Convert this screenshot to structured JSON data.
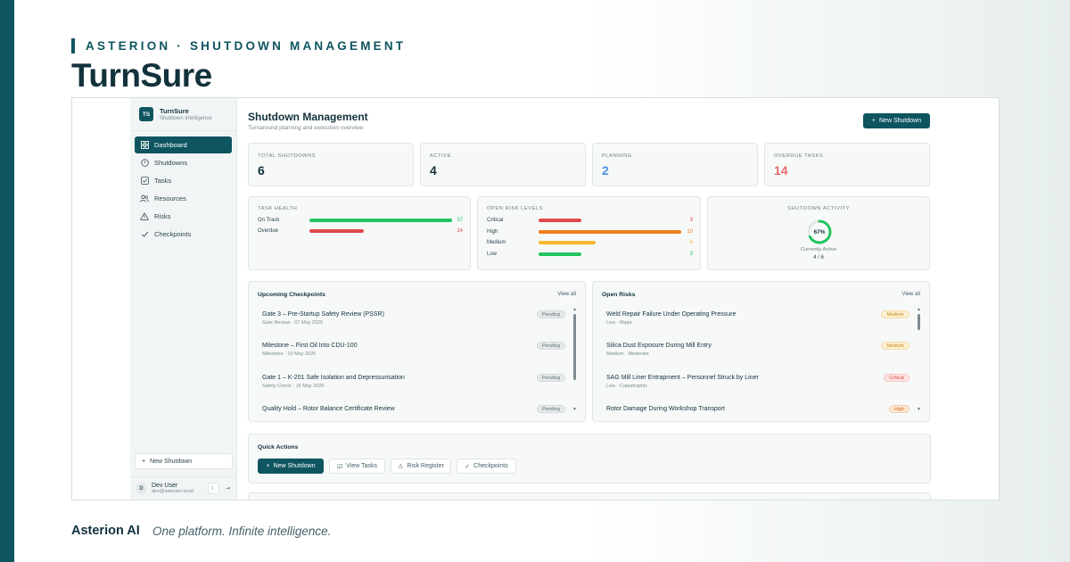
{
  "eyebrow": "ASTERION · SHUTDOWN MANAGEMENT",
  "product_title": "TurnSure",
  "colors": {
    "brand": "#0e5560",
    "green": "#22c55e",
    "red": "#e0484a",
    "orange": "#ee7d1c",
    "yellow": "#f5b82e",
    "blue": "#4f8fe0",
    "overdue": "#e86a6a"
  },
  "sidebar": {
    "logo": "TS",
    "brand_name": "TurnSure",
    "brand_sub": "Shutdown Intelligence",
    "items": [
      {
        "label": "Dashboard",
        "icon": "grid-icon"
      },
      {
        "label": "Shutdowns",
        "icon": "power-icon"
      },
      {
        "label": "Tasks",
        "icon": "checkbox-icon"
      },
      {
        "label": "Resources",
        "icon": "users-icon"
      },
      {
        "label": "Risks",
        "icon": "warning-icon"
      },
      {
        "label": "Checkpoints",
        "icon": "check-icon"
      }
    ],
    "new_shutdown": "New Shutdown",
    "user": {
      "initial": "D",
      "name": "Dev User",
      "email": "dev@asterion.local"
    }
  },
  "main": {
    "title": "Shutdown Management",
    "subtitle": "Turnaround planning and execution overview",
    "new_button": "New Shutdown"
  },
  "stats": [
    {
      "label": "TOTAL SHUTDOWNS",
      "value": "6"
    },
    {
      "label": "ACTIVE",
      "value": "4"
    },
    {
      "label": "PLANNING",
      "value": "2"
    },
    {
      "label": "OVERDUE TASKS",
      "value": "14"
    }
  ],
  "task_health": {
    "label": "TASK HEALTH",
    "rows": [
      {
        "name": "On Track",
        "value": 37,
        "display": "37"
      },
      {
        "name": "Overdue",
        "value": 14,
        "display": "14"
      }
    ]
  },
  "risk_levels": {
    "label": "OPEN RISK LEVELS",
    "rows": [
      {
        "name": "Critical",
        "value": 3,
        "display": "3"
      },
      {
        "name": "High",
        "value": 10,
        "display": "10"
      },
      {
        "name": "Medium",
        "value": 4,
        "display": "4"
      },
      {
        "name": "Low",
        "value": 3,
        "display": "3"
      }
    ]
  },
  "activity": {
    "label": "SHUTDOWN ACTIVITY",
    "percent": 0.67,
    "percent_text": "67%",
    "caption": "Currently Active",
    "ratio": "4 / 6"
  },
  "checkpoints": {
    "title": "Upcoming Checkpoints",
    "view_all": "View all",
    "items": [
      {
        "title": "Gate 3 – Pre-Startup Safety Review (PSSR)",
        "sub": "Gate Review · 07 May 2026",
        "status": "Pending"
      },
      {
        "title": "Milestone – First Oil Into CDU-100",
        "sub": "Milestone · 10 May 2026",
        "status": "Pending"
      },
      {
        "title": "Gate 1 – K-201 Safe Isolation and Depressurisation",
        "sub": "Safety Check · 16 May 2026",
        "status": "Pending"
      },
      {
        "title": "Quality Hold – Rotor Balance Certificate Review",
        "sub": "",
        "status": "Pending"
      }
    ]
  },
  "risks": {
    "title": "Open Risks",
    "view_all": "View all",
    "items": [
      {
        "title": "Weld Repair Failure Under Operating Pressure",
        "sub": "Low · Major",
        "status": "Medium"
      },
      {
        "title": "Silica Dust Exposure During Mill Entry",
        "sub": "Medium · Moderate",
        "status": "Medium"
      },
      {
        "title": "SAG Mill Liner Entrapment – Personnel Struck by Liner",
        "sub": "Low · Catastrophic",
        "status": "Critical"
      },
      {
        "title": "Rotor Damage During Workshop Transport",
        "sub": "",
        "status": "High"
      }
    ]
  },
  "quick_actions": {
    "title": "Quick Actions",
    "buttons": [
      "New Shutdown",
      "View Tasks",
      "Risk Register",
      "Checkpoints"
    ]
  },
  "footer": {
    "brand": "Asterion AI",
    "tagline": "One platform. Infinite intelligence."
  }
}
